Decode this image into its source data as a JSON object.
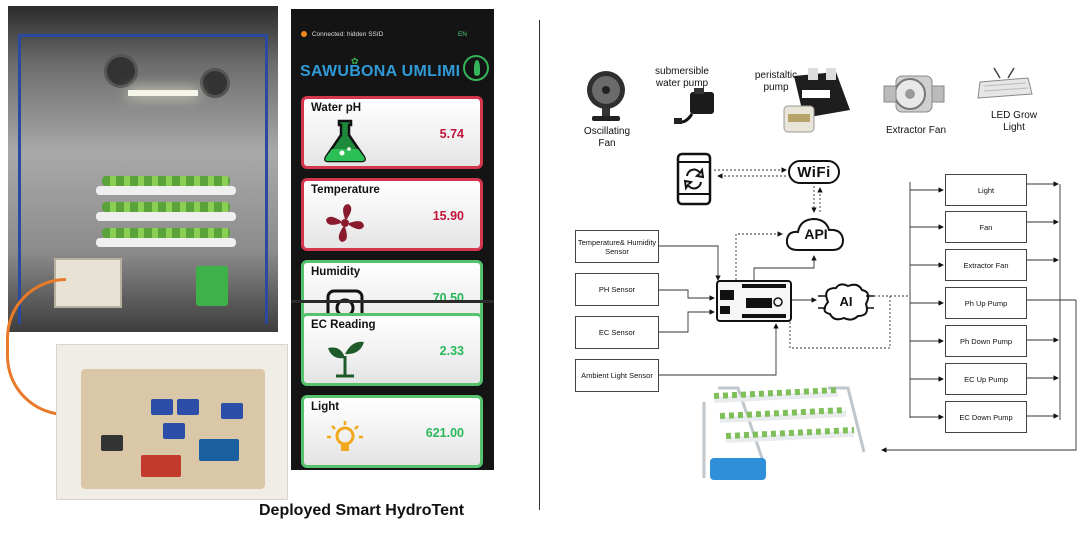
{
  "caption": "Deployed Smart HydroTent",
  "app": {
    "status_text": "Connected: hidden SSID",
    "language": "EN",
    "brand": "SAWUBONA UMLIMI",
    "readings": [
      {
        "title": "Water pH",
        "value": "5.74",
        "status": "alert"
      },
      {
        "title": "Temperature",
        "value": "15.90",
        "status": "alert"
      },
      {
        "title": "Humidity",
        "value": "70.50",
        "status": "ok"
      },
      {
        "title": "EC Reading",
        "value": "2.33",
        "status": "ok"
      },
      {
        "title": "Light",
        "value": "621.00",
        "status": "ok"
      }
    ],
    "colors": {
      "alert": "#d4364c",
      "ok": "#56c26d",
      "brand": "#2f9ad6"
    }
  },
  "devices": {
    "fan": "Oscillating Fan",
    "submersible_line1": "submersible",
    "submersible_line2": "water pump",
    "peristaltic_line1": "peristaltic",
    "peristaltic_line2": "pump",
    "extractor": "Extractor Fan",
    "led_line1": "LED Grow",
    "led_line2": "Light"
  },
  "network": {
    "wifi": "WiFi",
    "api": "API",
    "ai": "AI"
  },
  "sensors": [
    "Temperature& Humidity Sensor",
    "PH Sensor",
    "EC Sensor",
    "Ambient Light Sensor"
  ],
  "actuators": [
    "Light",
    "Fan",
    "Extractor Fan",
    "Ph Up Pump",
    "Ph Down Pump",
    "EC Up Pump",
    "EC Down Pump"
  ]
}
